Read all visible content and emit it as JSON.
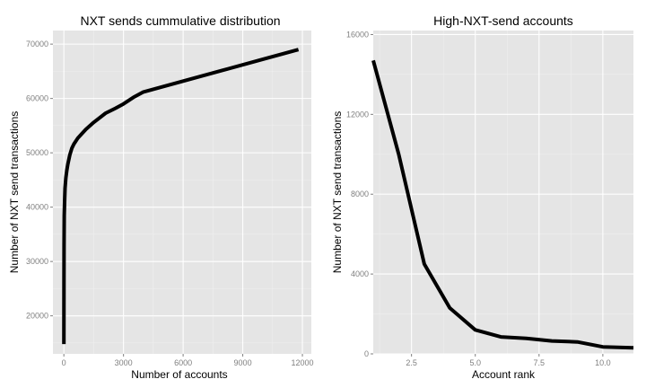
{
  "chart_data": [
    {
      "type": "line",
      "title": "NXT sends cummulative distribution",
      "xlabel": "Number of accounts",
      "ylabel": "Number of NXT send transactions",
      "xlim": [
        -550,
        12450
      ],
      "ylim": [
        13000,
        72500
      ],
      "x_ticks": [
        {
          "value": 0,
          "label": "0"
        },
        {
          "value": 3000,
          "label": "3000"
        },
        {
          "value": 6000,
          "label": "6000"
        },
        {
          "value": 9000,
          "label": "9000"
        },
        {
          "value": 12000,
          "label": "12000"
        }
      ],
      "y_ticks": [
        {
          "value": 20000,
          "label": "20000"
        },
        {
          "value": 30000,
          "label": "30000"
        },
        {
          "value": 40000,
          "label": "40000"
        },
        {
          "value": 50000,
          "label": "50000"
        },
        {
          "value": 60000,
          "label": "60000"
        },
        {
          "value": 70000,
          "label": "70000"
        }
      ],
      "grid": true,
      "series": [
        {
          "color": "#000000",
          "x": [
            0,
            5,
            10,
            20,
            40,
            60,
            100,
            150,
            200,
            300,
            400,
            500,
            700,
            900,
            1100,
            1500,
            2100,
            2600,
            3000,
            3500,
            4000,
            6000,
            8000,
            10000,
            11800
          ],
          "y": [
            14800,
            26000,
            33000,
            38500,
            41500,
            43500,
            45400,
            46800,
            47900,
            49600,
            50800,
            51600,
            52700,
            53500,
            54300,
            55600,
            57300,
            58200,
            59000,
            60200,
            61200,
            63200,
            65200,
            67200,
            69000
          ]
        }
      ]
    },
    {
      "type": "line",
      "title": "High-NXT-send accounts",
      "xlabel": "Account rank",
      "ylabel": "Number of NXT send transactions",
      "xlim": [
        1,
        11.2
      ],
      "ylim": [
        0,
        16200
      ],
      "x_ticks": [
        {
          "value": 2.5,
          "label": "2.5"
        },
        {
          "value": 5.0,
          "label": "5.0"
        },
        {
          "value": 7.5,
          "label": "7.5"
        },
        {
          "value": 10.0,
          "label": "10.0"
        }
      ],
      "y_ticks": [
        {
          "value": 0,
          "label": "0"
        },
        {
          "value": 4000,
          "label": "4000"
        },
        {
          "value": 8000,
          "label": "8000"
        },
        {
          "value": 12000,
          "label": "12000"
        },
        {
          "value": 16000,
          "label": "16000"
        }
      ],
      "grid": true,
      "series": [
        {
          "color": "#000000",
          "x": [
            1,
            2,
            3,
            4,
            5,
            6,
            7,
            8,
            9,
            10,
            11.2
          ],
          "y": [
            14700,
            10000,
            4500,
            2300,
            1200,
            850,
            780,
            650,
            600,
            350,
            300
          ]
        }
      ]
    }
  ]
}
